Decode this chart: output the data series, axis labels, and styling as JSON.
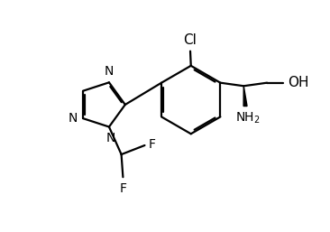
{
  "background_color": "#ffffff",
  "line_color": "#000000",
  "line_width": 1.6,
  "font_size": 10,
  "figsize": [
    3.66,
    2.57
  ],
  "dpi": 100,
  "xlim": [
    0,
    10
  ],
  "ylim": [
    0,
    7
  ]
}
